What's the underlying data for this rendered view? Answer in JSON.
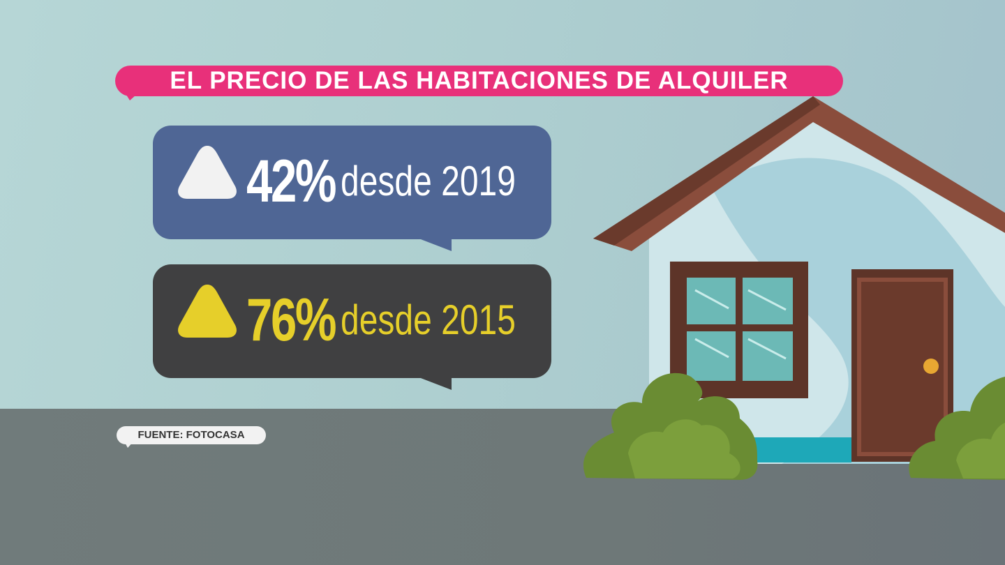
{
  "title": "EL PRECIO DE LAS HABITACIONES DE ALQUILER",
  "stats": [
    {
      "value": "42%",
      "since": "desde 2019",
      "direction": "up-arrow-icon",
      "text_color": "#ffffff",
      "bubble_color": "#4f6695"
    },
    {
      "value": "76%",
      "since": "desde 2015",
      "direction": "up-arrow-icon",
      "text_color": "#e6cf2a",
      "bubble_color": "#404041"
    }
  ],
  "source": "FUENTE: FOTOCASA",
  "colors": {
    "title_bubble": "#e8307a",
    "sky": "#b2d3d3",
    "ground": "#6f7979"
  }
}
